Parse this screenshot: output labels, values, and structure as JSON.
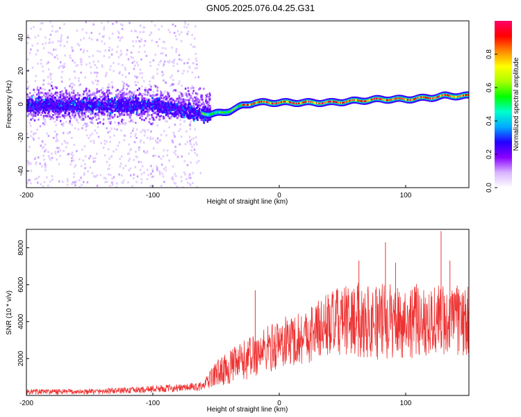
{
  "figure_title": "GN05.2025.076.04.25.G31",
  "chart_data": [
    {
      "type": "heatmap",
      "xlabel": "Height of straight line (km)",
      "ylabel": "Frequency (Hz)",
      "xlim": [
        -200,
        150
      ],
      "ylim": [
        -50,
        50
      ],
      "x_ticks": [
        -200,
        -100,
        0,
        100
      ],
      "y_ticks": [
        -40,
        -20,
        0,
        20,
        40
      ],
      "grid": false,
      "ridge": {
        "x": [
          -200,
          -150,
          -100,
          -80,
          -70,
          -62,
          -55,
          -45,
          -40,
          -30,
          -20,
          0,
          20,
          40,
          60,
          80,
          100,
          120,
          130,
          150
        ],
        "y": [
          0,
          0,
          0,
          -2,
          -4,
          -5,
          -6,
          -5,
          -4,
          -1,
          1,
          1,
          1,
          1,
          2,
          3,
          3,
          4,
          5,
          5
        ]
      },
      "colorbar": {
        "label": "Normalized spectral amplitude",
        "range": [
          0,
          1
        ],
        "ticks": [
          0.0,
          0.2,
          0.4,
          0.6,
          0.8
        ],
        "tick_labels": [
          "0.0",
          "0.2",
          "0.4",
          "0.6",
          "0.8"
        ],
        "colors": [
          "#ffffff",
          "#d9b3ff",
          "#8a00ff",
          "#2200ff",
          "#00aaff",
          "#00ffcc",
          "#00ff00",
          "#aaff00",
          "#ffff00",
          "#ff8800",
          "#ff0000",
          "#ff0066"
        ]
      }
    },
    {
      "type": "line",
      "xlabel": "Height of straight line (km)",
      "ylabel": "SNR (10 * v/v)",
      "xlim": [
        -200,
        150
      ],
      "ylim": [
        0,
        9000
      ],
      "x_ticks": [
        -200,
        -100,
        0,
        100
      ],
      "y_ticks": [
        2000,
        4000,
        6000,
        8000
      ],
      "color": "#ee3333",
      "envelope": {
        "x": [
          -200,
          -150,
          -110,
          -100,
          -80,
          -60,
          -50,
          -40,
          -30,
          -20,
          -10,
          0,
          20,
          40,
          60,
          80,
          100,
          120,
          150
        ],
        "mean": [
          200,
          200,
          300,
          350,
          400,
          500,
          1200,
          1500,
          1800,
          2200,
          2500,
          2800,
          3200,
          3900,
          4100,
          4000,
          4000,
          4100,
          4000
        ],
        "spread": [
          150,
          150,
          180,
          200,
          200,
          250,
          700,
          900,
          1100,
          1200,
          1300,
          1400,
          1500,
          1800,
          2000,
          2100,
          2000,
          2000,
          1900
        ]
      },
      "spikes": [
        {
          "x": -19,
          "y": 5700
        },
        {
          "x": 63,
          "y": 7300
        },
        {
          "x": 84,
          "y": 8300
        },
        {
          "x": 92,
          "y": 7200
        },
        {
          "x": 128,
          "y": 8900
        },
        {
          "x": 135,
          "y": 7300
        }
      ]
    }
  ]
}
